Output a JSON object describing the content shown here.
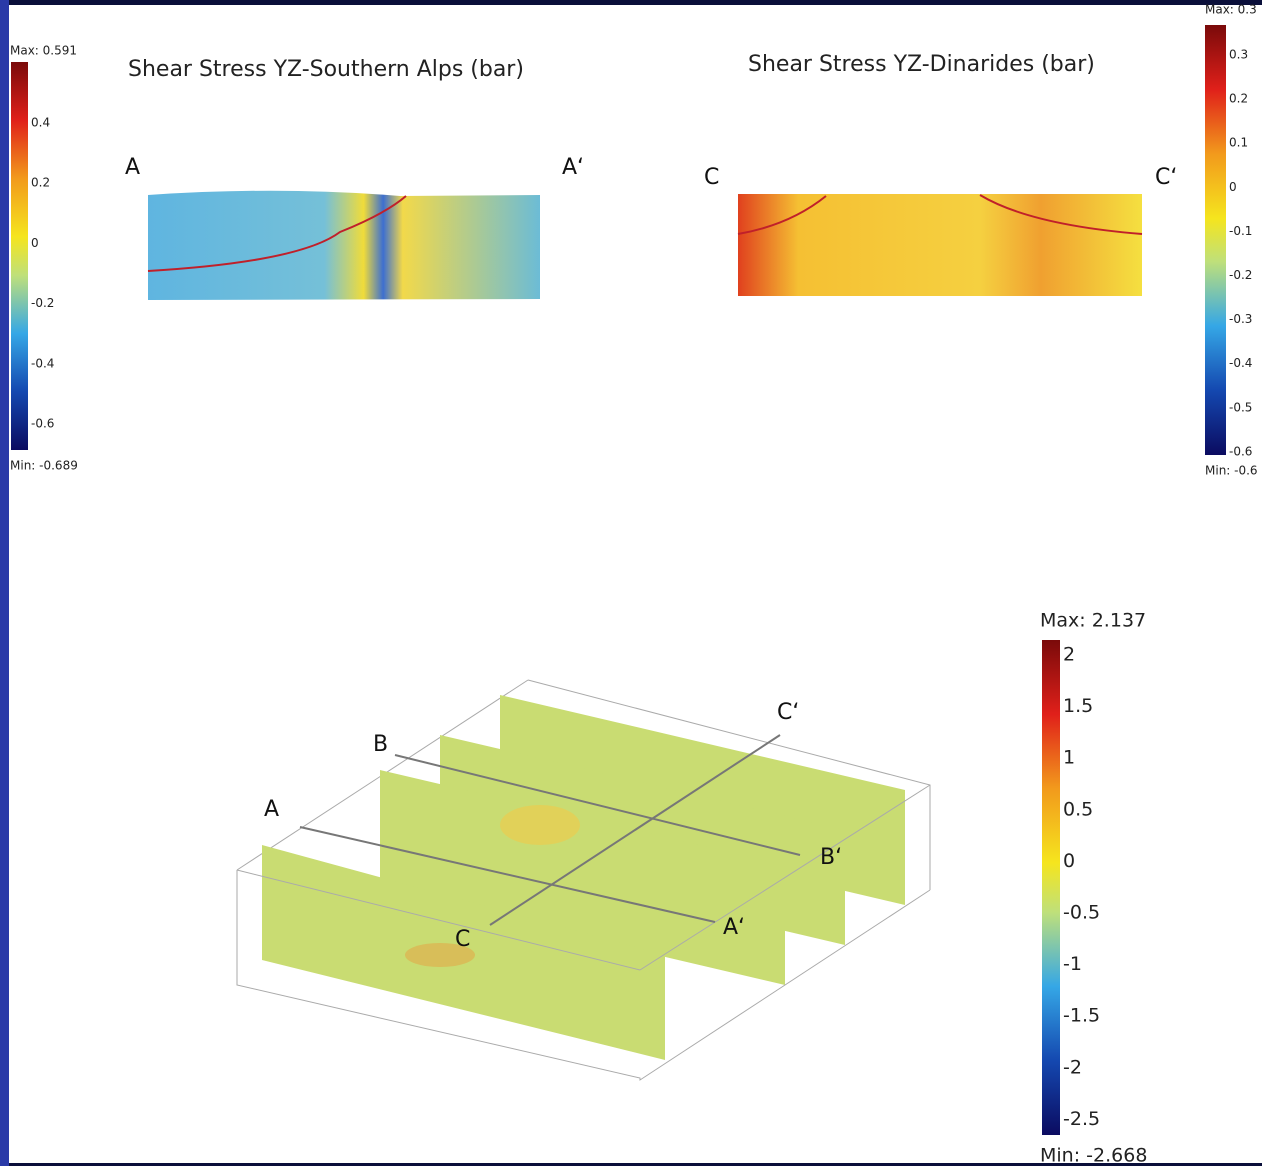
{
  "left_panel": {
    "title": "Shear Stress YZ-Southern Alps (bar)",
    "label_start": "A",
    "label_end": "A‘",
    "colorbar": {
      "max": "Max: 0.591",
      "min": "Min: -0.689",
      "ticks": [
        "0.4",
        "0.2",
        "0",
        "-0.2",
        "-0.4",
        "-0.6"
      ]
    }
  },
  "right_panel": {
    "title": "Shear Stress YZ-Dinarides (bar)",
    "label_start": "C",
    "label_end": "C‘",
    "colorbar": {
      "max": "Max: 0.3",
      "min": "Min: -0.6",
      "ticks": [
        "0.3",
        "0.2",
        "0.1",
        "0",
        "-0.1",
        "-0.2",
        "-0.3",
        "-0.4",
        "-0.5",
        "-0.6"
      ]
    }
  },
  "block_view": {
    "labels": {
      "a": "A",
      "a_end": "A‘",
      "b": "B",
      "b_end": "B‘",
      "c": "C",
      "c_end": "C‘"
    },
    "colorbar": {
      "max": "Max: 2.137",
      "min": "Min: -2.668",
      "ticks": [
        "2",
        "1.5",
        "1",
        "0.5",
        "0",
        "-0.5",
        "-1",
        "-1.5",
        "-2",
        "-2.5"
      ]
    }
  }
}
